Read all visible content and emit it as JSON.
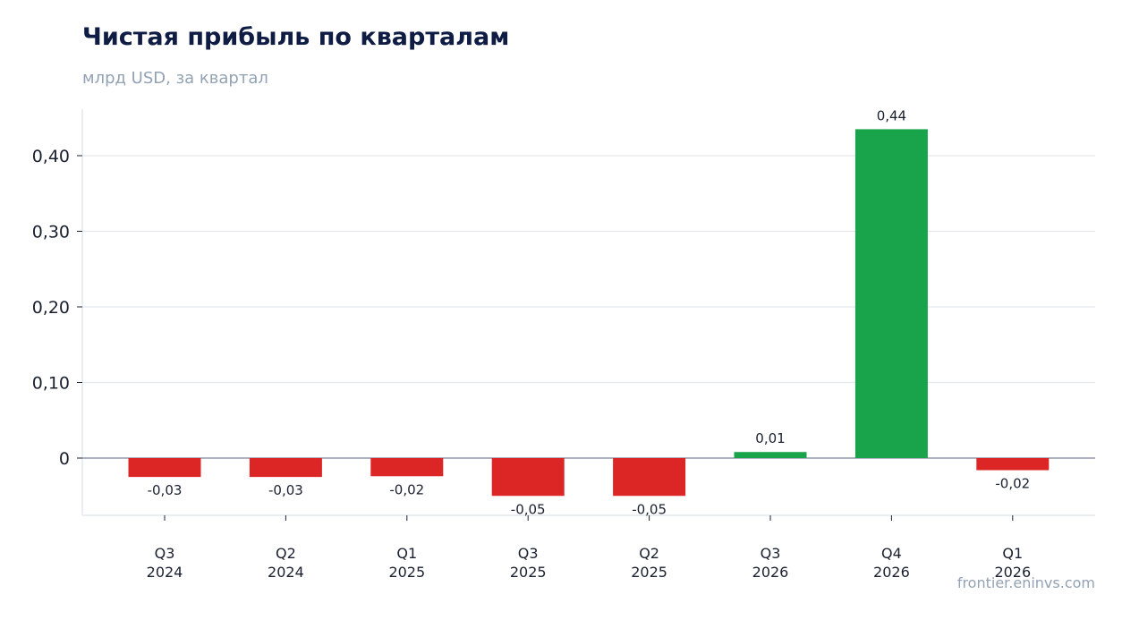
{
  "header": {
    "title": "Чистая прибыль по кварталам",
    "subtitle": "млрд USD, за квартал"
  },
  "footer": {
    "source": "frontier.eninvs.com"
  },
  "colors": {
    "positive": "#19a34a",
    "negative": "#dc2626",
    "grid": "#e3e7ee",
    "zero_line": "#8f9bab"
  },
  "chart_data": {
    "type": "bar",
    "title": "Чистая прибыль по кварталам",
    "subtitle": "млрд USD, за квартал",
    "categories": [
      [
        "Q3",
        "2024"
      ],
      [
        "Q2",
        "2024"
      ],
      [
        "Q1",
        "2025"
      ],
      [
        "Q3",
        "2025"
      ],
      [
        "Q2",
        "2025"
      ],
      [
        "Q3",
        "2026"
      ],
      [
        "Q4",
        "2026"
      ],
      [
        "Q1",
        "2026"
      ]
    ],
    "values": [
      -0.025,
      -0.025,
      -0.024,
      -0.05,
      -0.05,
      0.008,
      0.435,
      -0.016
    ],
    "data_labels": [
      "-0,03",
      "-0,03",
      "-0,02",
      "-0,05",
      "-0,05",
      "0,01",
      "0,44",
      "-0,02"
    ],
    "y_ticks": [
      0,
      0.1,
      0.2,
      0.3,
      0.4
    ],
    "y_tick_labels": [
      "0",
      "0,10",
      "0,20",
      "0,30",
      "0,40"
    ],
    "ylim": [
      -0.076,
      0.46
    ],
    "grid": true,
    "legend": "none"
  }
}
